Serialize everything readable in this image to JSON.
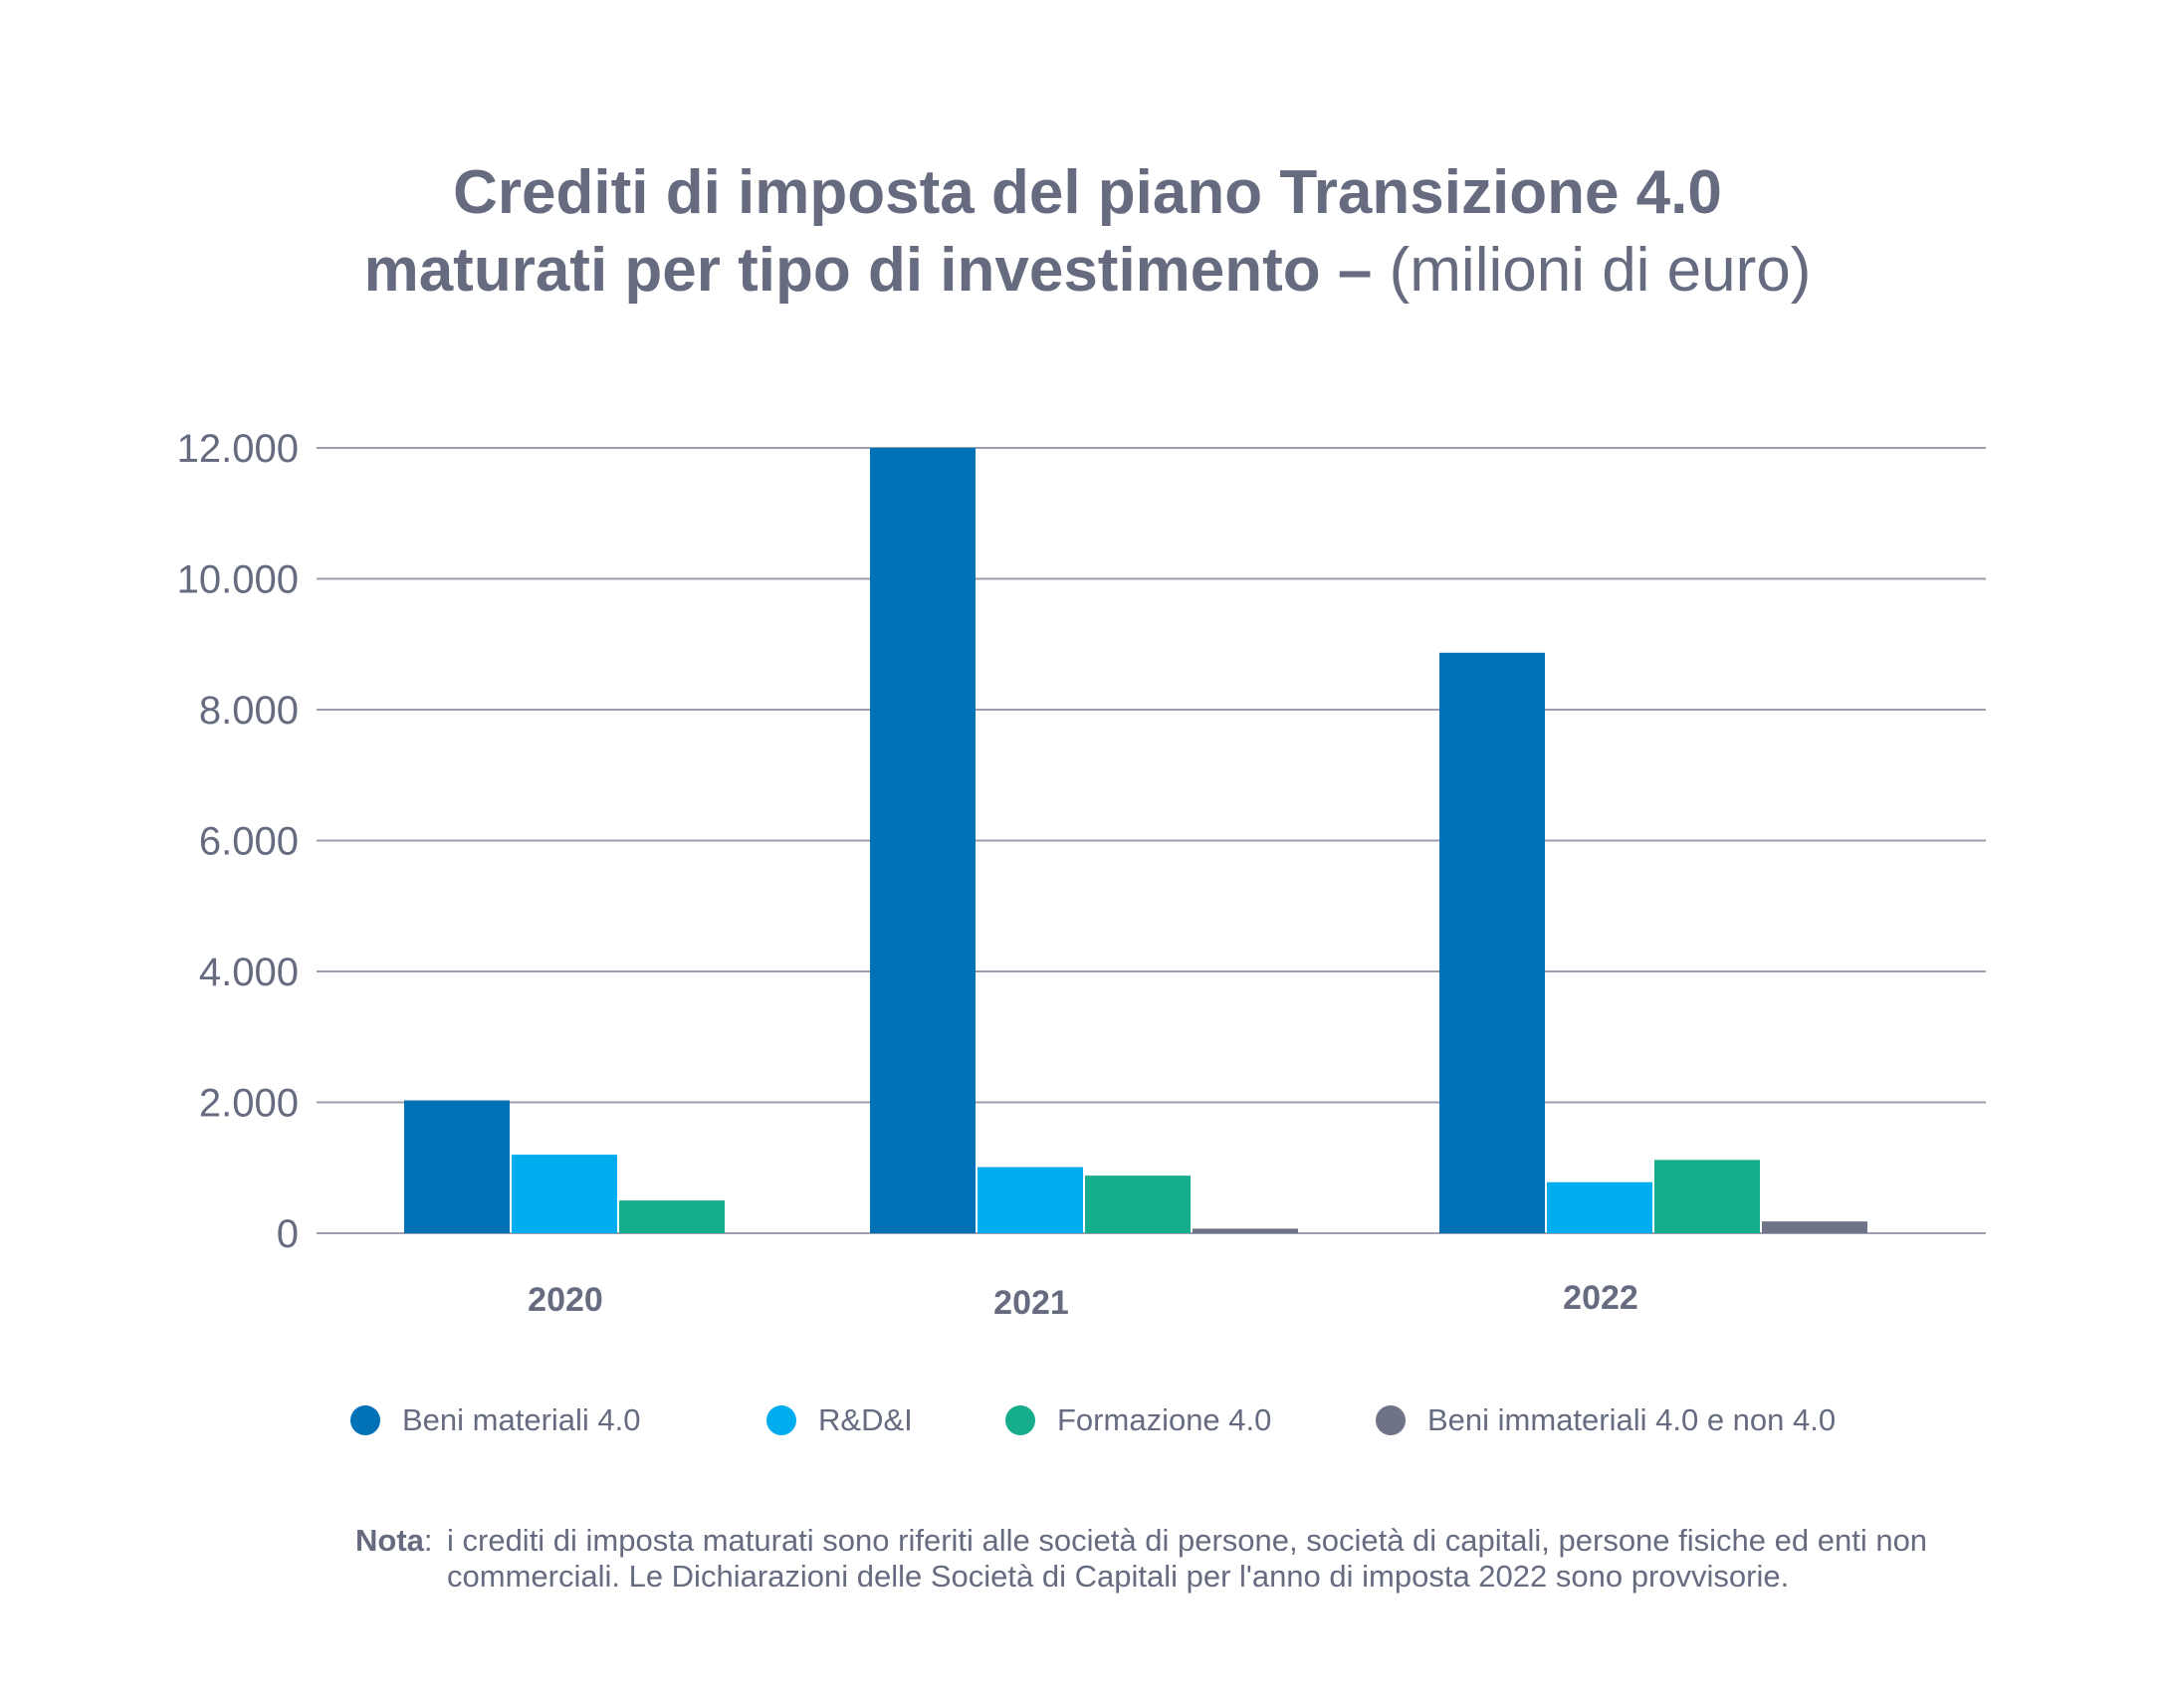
{
  "title": {
    "line1": "Crediti di imposta del piano Transizione 4.0",
    "line2": "maturati per tipo di investimento –",
    "unit": "(milioni di euro)"
  },
  "chart_data": {
    "type": "bar",
    "title": "Crediti di imposta del piano Transizione 4.0 maturati per tipo di investimento – (milioni di euro)",
    "xlabel": "",
    "ylabel": "",
    "categories": [
      "2020",
      "2021",
      "2022"
    ],
    "ylim": [
      0,
      12000
    ],
    "yticks": [
      0,
      2000,
      4000,
      6000,
      8000,
      10000,
      12000
    ],
    "ytick_labels": [
      "0",
      "2.000",
      "4.000",
      "6.000",
      "8.000",
      "10.000",
      "12.000"
    ],
    "grid": true,
    "legend_position": "bottom",
    "series": [
      {
        "name": "Beni materiali 4.0",
        "color": "#0072b5",
        "values": [
          2030,
          12000,
          8870
        ]
      },
      {
        "name": "R&D&I",
        "color": "#00adef",
        "values": [
          1200,
          1010,
          780
        ]
      },
      {
        "name": "Formazione 4.0",
        "color": "#15ad8c",
        "values": [
          500,
          880,
          1120
        ]
      },
      {
        "name": "Beni immateriali 4.0 e non 4.0",
        "color": "#6e7388",
        "values": [
          0,
          70,
          180
        ]
      }
    ]
  },
  "note": {
    "label": "Nota",
    "text": "i crediti di imposta maturati sono riferiti alle società di persone, società di capitali, persone fisiche ed enti non commerciali. Le Dichiarazioni delle Società di Capitali per l'anno di imposta 2022 sono provvisorie."
  },
  "colors": {
    "text": "#666b80",
    "grid": "#9a9eae"
  }
}
